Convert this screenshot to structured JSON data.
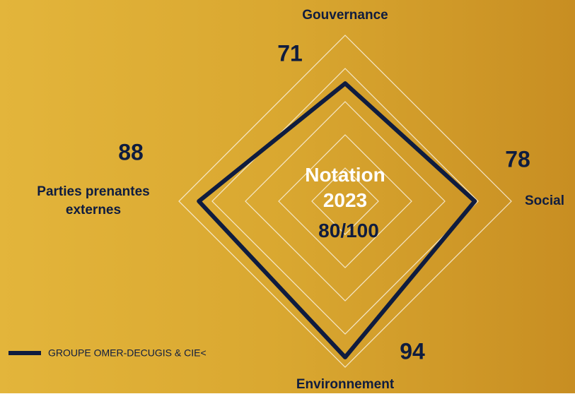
{
  "chart_data": {
    "type": "radar",
    "categories": [
      "Gouvernance",
      "Social",
      "Environnement",
      "Parties prenantes externes"
    ],
    "series": [
      {
        "name": "GROUPE OMER-DECUGIS & CIE<",
        "color": "#0f1c3f",
        "values": [
          71,
          78,
          94,
          88
        ]
      }
    ],
    "ylim": [
      0,
      100
    ],
    "yticks": [
      20,
      40,
      60,
      80,
      100
    ],
    "center_label": "Notation 2023",
    "score_label": "80/100",
    "legend": "bottom-left"
  }
}
